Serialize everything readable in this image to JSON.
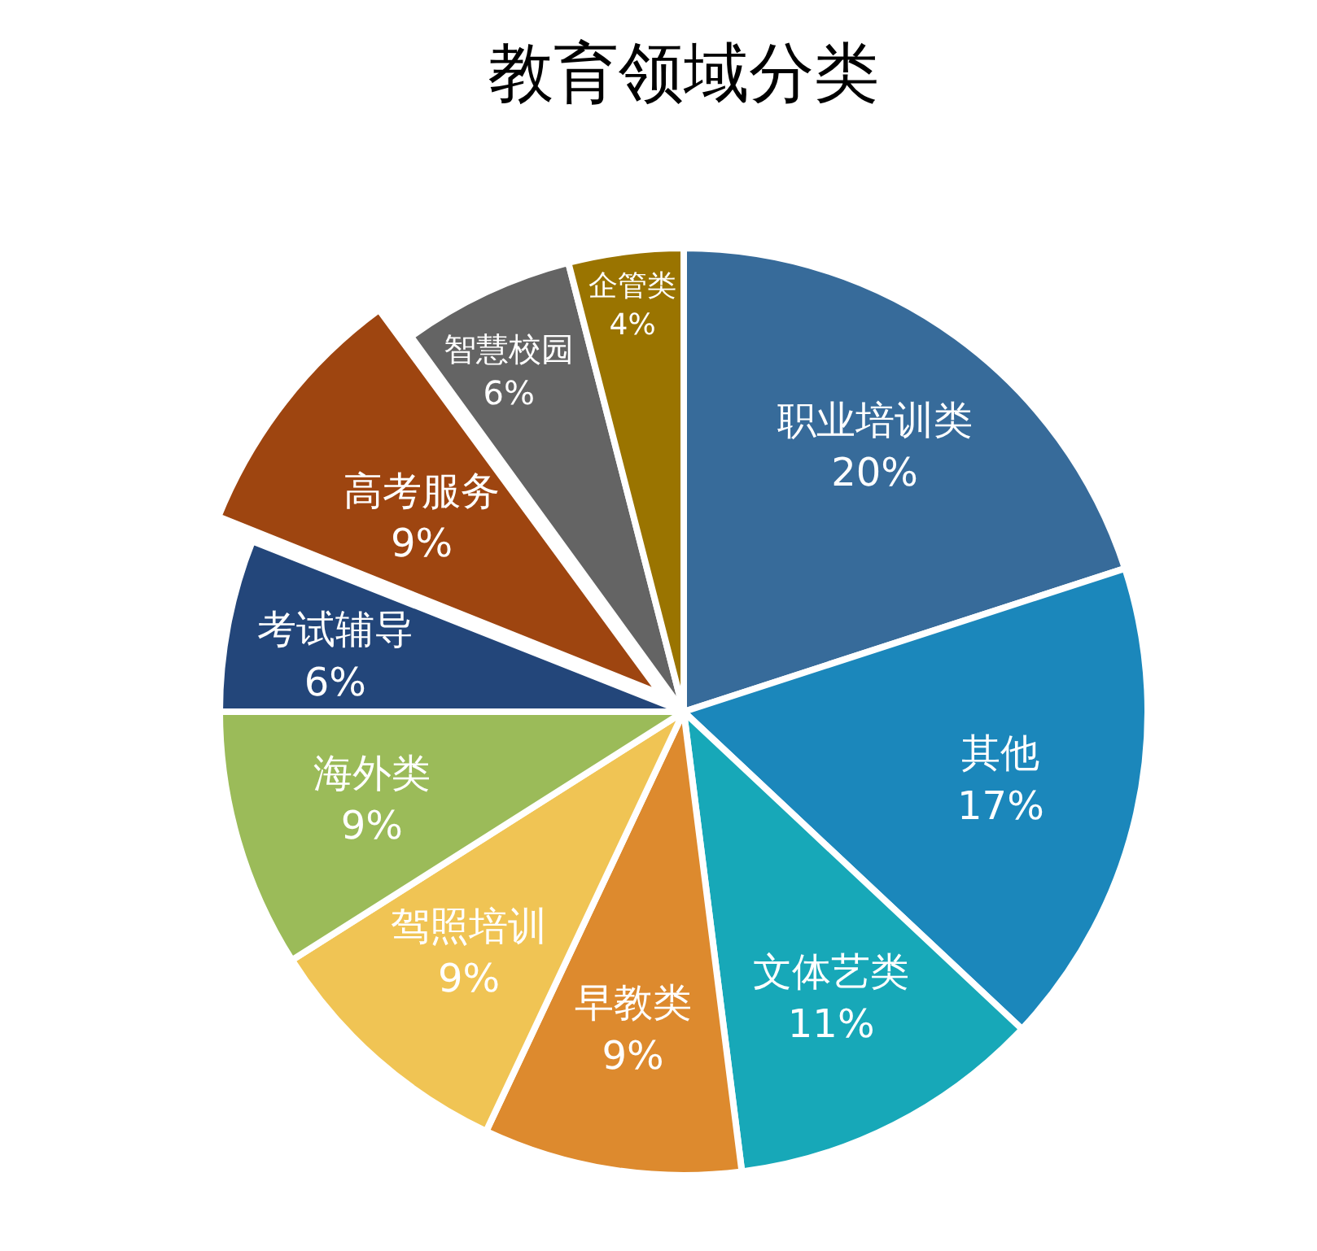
{
  "chart_data": {
    "type": "pie",
    "title": "教育领域分类",
    "categories": [
      "职业培训类",
      "其他",
      "文体艺类",
      "早教类",
      "驾照培训",
      "海外类",
      "考试辅导",
      "高考服务",
      "智慧校园",
      "企管类"
    ],
    "values": [
      20,
      17,
      11,
      9,
      9,
      9,
      6,
      9,
      6,
      4
    ],
    "value_labels": [
      "20%",
      "17%",
      "11%",
      "9%",
      "9%",
      "9%",
      "6%",
      "9%",
      "6%",
      "4%"
    ],
    "colors": [
      "#376b9a",
      "#1b87bb",
      "#17a8b8",
      "#dd8a2e",
      "#f0c454",
      "#9bbb59",
      "#23467a",
      "#9e4510",
      "#646464",
      "#9a7400"
    ],
    "legend": false
  }
}
